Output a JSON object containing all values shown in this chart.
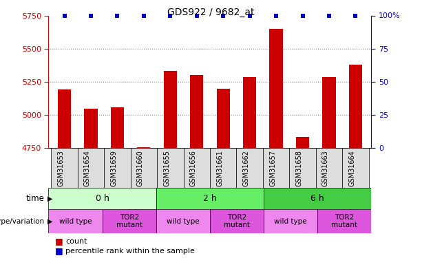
{
  "title": "GDS922 / 9682_at",
  "samples": [
    "GSM31653",
    "GSM31654",
    "GSM31659",
    "GSM31660",
    "GSM31655",
    "GSM31656",
    "GSM31661",
    "GSM31662",
    "GSM31657",
    "GSM31658",
    "GSM31663",
    "GSM31664"
  ],
  "counts": [
    5190,
    5045,
    5055,
    4752,
    5330,
    5300,
    5195,
    5285,
    5650,
    4830,
    5285,
    5380
  ],
  "ylim_left": [
    4750,
    5750
  ],
  "ylim_right": [
    0,
    100
  ],
  "yticks_left": [
    4750,
    5000,
    5250,
    5500,
    5750
  ],
  "yticks_right": [
    0,
    25,
    50,
    75,
    100
  ],
  "bar_color": "#cc0000",
  "percentile_color": "#0000cc",
  "bar_width": 0.5,
  "time_groups": [
    {
      "label": "0 h",
      "start": 0,
      "end": 4,
      "color": "#ccffcc"
    },
    {
      "label": "2 h",
      "start": 4,
      "end": 8,
      "color": "#66ee66"
    },
    {
      "label": "6 h",
      "start": 8,
      "end": 12,
      "color": "#44cc44"
    }
  ],
  "genotype_groups": [
    {
      "label": "wild type",
      "start": 0,
      "end": 2,
      "color": "#ee88ee"
    },
    {
      "label": "TOR2\nmutant",
      "start": 2,
      "end": 4,
      "color": "#dd55dd"
    },
    {
      "label": "wild type",
      "start": 4,
      "end": 6,
      "color": "#ee88ee"
    },
    {
      "label": "TOR2\nmutant",
      "start": 6,
      "end": 8,
      "color": "#dd55dd"
    },
    {
      "label": "wild type",
      "start": 8,
      "end": 10,
      "color": "#ee88ee"
    },
    {
      "label": "TOR2\nmutant",
      "start": 10,
      "end": 12,
      "color": "#dd55dd"
    }
  ],
  "xlabel_color": "#000000",
  "grid_yticks": [
    5000,
    5250,
    5500
  ],
  "grid_color": "#888888",
  "tick_color_left": "#cc0000",
  "tick_color_right": "#0000cc",
  "time_row_label": "time",
  "genotype_row_label": "genotype/variation",
  "legend_count_label": "count",
  "legend_percentile_label": "percentile rank within the sample"
}
